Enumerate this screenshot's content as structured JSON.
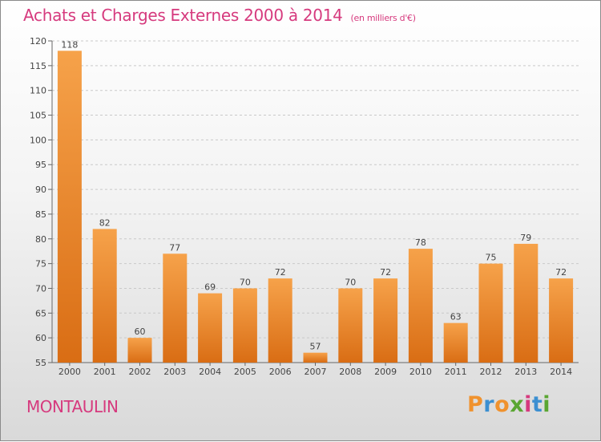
{
  "chart_data": {
    "type": "bar",
    "title": "Achats et Charges Externes 2000 à 2014",
    "subtitle": "(en milliers d'€)",
    "categories": [
      "2000",
      "2001",
      "2002",
      "2003",
      "2004",
      "2005",
      "2006",
      "2007",
      "2008",
      "2009",
      "2010",
      "2011",
      "2012",
      "2013",
      "2014"
    ],
    "values": [
      118,
      82,
      60,
      77,
      69,
      70,
      72,
      57,
      70,
      72,
      78,
      63,
      75,
      79,
      72
    ],
    "ylim": [
      55,
      120
    ],
    "yticks": [
      55,
      60,
      65,
      70,
      75,
      80,
      85,
      90,
      95,
      100,
      105,
      110,
      115,
      120
    ],
    "grid": true,
    "bar_color": "#f0922e"
  },
  "footer": {
    "place": "MONTAULIN",
    "brand": "Proxiti"
  },
  "colors": {
    "title": "#d63a7e",
    "brand_letters": [
      "#f0922e",
      "#3b8fd1",
      "#f0922e",
      "#5aa632",
      "#d63a7e",
      "#3b8fd1",
      "#5aa632"
    ]
  }
}
